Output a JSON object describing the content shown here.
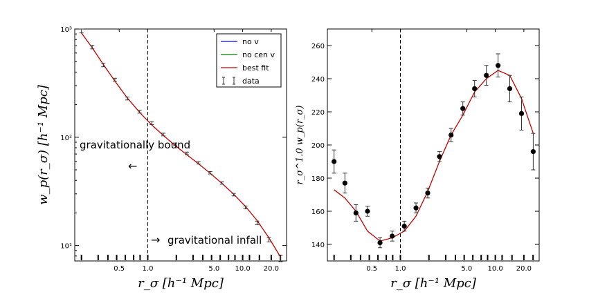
{
  "chart_data": [
    {
      "type": "line",
      "xscale": "log",
      "yscale": "log",
      "xlim": [
        0.17,
        29
      ],
      "ylim": [
        7.2,
        1000
      ],
      "xlabel": "r_σ [h⁻¹ Mpc]",
      "ylabel": "w_p(r_σ) [h⁻¹ Mpc]",
      "x_ticks": [
        0.5,
        1.0,
        5.0,
        10.0,
        20.0
      ],
      "x_tick_labels": [
        "0.5",
        "1.0",
        "5.0",
        "10.0",
        "20.0"
      ],
      "y_ticks": [
        10,
        100,
        1000
      ],
      "y_tick_labels": [
        "10¹",
        "10²",
        "10³"
      ],
      "vline_x": 1.0,
      "legend": {
        "placement": "top-right",
        "entries": [
          {
            "label": "no v",
            "color": "#0000ff"
          },
          {
            "label": "no cen v",
            "color": "#008000"
          },
          {
            "label": "best fit",
            "color": "#c00000"
          },
          {
            "label": "data",
            "marker": "errorbar"
          }
        ]
      },
      "annotations": [
        {
          "text": "gravitationally bound",
          "arrow": "←",
          "x": 0.2,
          "y": 82
        },
        {
          "text": "gravitational infall",
          "arrow": "→",
          "x": 1.08,
          "y": 10.5
        }
      ],
      "data_bin_ticks": [
        0.2,
        0.3,
        0.38,
        0.47,
        0.58,
        0.71,
        0.83,
        1.0,
        2.0,
        3.0,
        3.8,
        4.7,
        5.8,
        7.1,
        8.3,
        10.0,
        11.8,
        15.0,
        20.0,
        25.0
      ],
      "series": [
        {
          "name": "best fit",
          "color": "#c00000",
          "x": [
            0.2,
            0.26,
            0.34,
            0.45,
            0.61,
            0.82,
            1.1,
            1.46,
            1.94,
            2.58,
            3.42,
            4.55,
            6.05,
            8.05,
            10.7,
            14.2,
            18.9,
            25.1
          ],
          "y": [
            920,
            670,
            470,
            330,
            230,
            170,
            130,
            104,
            84,
            69,
            57,
            46.5,
            37.5,
            29.8,
            23,
            17,
            11.8,
            7.8
          ]
        },
        {
          "name": "data",
          "marker": "errorbar",
          "x": [
            0.2,
            0.26,
            0.34,
            0.45,
            0.61,
            0.82,
            1.1,
            1.46,
            1.94,
            2.58,
            3.42,
            4.55,
            6.05,
            8.05,
            10.7,
            14.2,
            18.9,
            25.1
          ],
          "y": [
            960,
            680,
            465,
            340,
            228,
            172,
            135,
            106,
            86,
            71,
            58,
            47,
            37.8,
            29.5,
            22.5,
            16.2,
            11.3,
            7.6
          ],
          "yerr": [
            40,
            25,
            17,
            11,
            7,
            5,
            4,
            3,
            2.5,
            2,
            1.5,
            1.2,
            1.0,
            0.8,
            0.7,
            0.6,
            0.5,
            0.5
          ]
        }
      ]
    },
    {
      "type": "line",
      "xscale": "log",
      "yscale": "linear",
      "xlim": [
        0.17,
        29
      ],
      "ylim": [
        130,
        270
      ],
      "xlabel": "r_σ [h⁻¹ Mpc]",
      "ylabel": "r_σ^1.0 w_p(r_σ)",
      "x_ticks": [
        0.5,
        1.0,
        5.0,
        10.0,
        20.0
      ],
      "x_tick_labels": [
        "0.5",
        "1.0",
        "5.0",
        "10.0",
        "20.0"
      ],
      "y_ticks": [
        140,
        160,
        180,
        200,
        220,
        240,
        260
      ],
      "y_tick_labels": [
        "140",
        "160",
        "180",
        "200",
        "220",
        "240",
        "260"
      ],
      "vline_x": 1.0,
      "data_bin_ticks": [
        0.2,
        0.3,
        0.38,
        0.47,
        0.58,
        0.71,
        0.83,
        1.0,
        2.0,
        3.0,
        3.8,
        4.7,
        5.8,
        7.1,
        8.3,
        10.0,
        11.8,
        15.0,
        20.0,
        25.0
      ],
      "series": [
        {
          "name": "best fit",
          "color": "#c00000",
          "x": [
            0.2,
            0.26,
            0.34,
            0.45,
            0.61,
            0.82,
            1.1,
            1.46,
            1.94,
            2.58,
            3.42,
            4.55,
            6.05,
            8.05,
            10.7,
            14.2,
            18.9,
            25.1
          ],
          "y": [
            173,
            168,
            160,
            148,
            142,
            144,
            148,
            157,
            172,
            190,
            206,
            218,
            232,
            240,
            245,
            242,
            228,
            207
          ]
        },
        {
          "name": "data",
          "marker": "circle-errorbar",
          "x": [
            0.2,
            0.26,
            0.34,
            0.45,
            0.61,
            0.82,
            1.1,
            1.46,
            1.94,
            2.58,
            3.42,
            4.55,
            6.05,
            8.05,
            10.7,
            14.2,
            18.9,
            25.1
          ],
          "y": [
            190,
            177,
            159,
            160,
            141,
            145,
            151,
            162,
            171,
            193,
            206,
            222,
            234,
            242,
            248,
            234,
            219,
            196
          ],
          "yerr": [
            7,
            6,
            5,
            3,
            3,
            3,
            3,
            3,
            3,
            3,
            4,
            4,
            5,
            6,
            7,
            8,
            10,
            11
          ]
        }
      ]
    }
  ]
}
